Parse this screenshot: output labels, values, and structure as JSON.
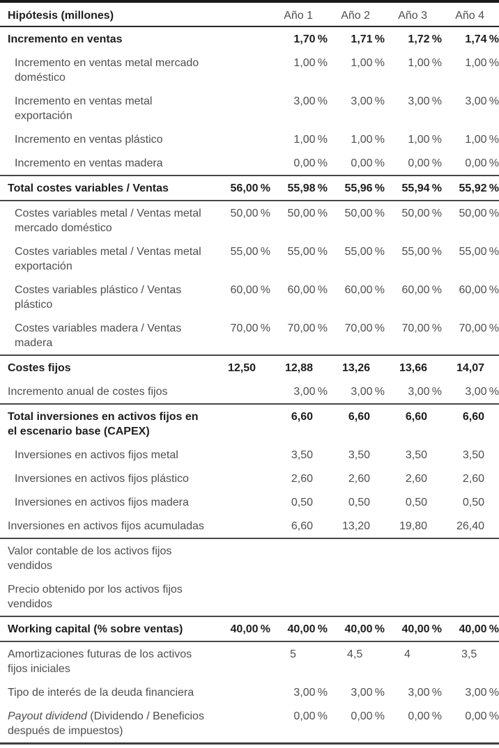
{
  "colors": {
    "text_regular": "#4e4e4e",
    "text_strong": "#1d1d1d",
    "rule": "#474747",
    "top_border": "#1a1a1a",
    "background": "#ffffff"
  },
  "table": {
    "title": "Hipótesis (millones)",
    "year_columns": [
      "Año 1",
      "Año 2",
      "Año 3",
      "Año 4"
    ],
    "rows": [
      {
        "label": "Incremento en ventas",
        "style": "bold",
        "values": [
          "",
          "1,70 %",
          "1,71 %",
          "1,72 %",
          "1,74 %"
        ]
      },
      {
        "label": "Incremento en ventas metal mercado\ndoméstico",
        "style": "sub",
        "values": [
          "",
          "1,00 %",
          "1,00 %",
          "1,00 %",
          "1,00 %"
        ]
      },
      {
        "label": "Incremento en ventas metal\nexportación",
        "style": "sub",
        "values": [
          "",
          "3,00 %",
          "3,00 %",
          "3,00 %",
          "3,00 %"
        ]
      },
      {
        "label": "Incremento en ventas plástico",
        "style": "sub",
        "values": [
          "",
          "1,00 %",
          "1,00 %",
          "1,00 %",
          "1,00 %"
        ]
      },
      {
        "label": "Incremento en ventas madera",
        "style": "sub",
        "values": [
          "",
          "0,00 %",
          "0,00 %",
          "0,00 %",
          "0,00 %"
        ]
      },
      {
        "label": "Total costes variables / Ventas",
        "style": "bold",
        "rule_above": true,
        "rule_below": true,
        "values": [
          "56,00 %",
          "55,98 %",
          "55,96 %",
          "55,94 %",
          "55,92 %"
        ]
      },
      {
        "label": "Costes variables metal / Ventas metal\nmercado doméstico",
        "style": "sub",
        "values": [
          "50,00 %",
          "50,00 %",
          "50,00 %",
          "50,00 %",
          "50,00 %"
        ]
      },
      {
        "label": "Costes variables metal / Ventas metal\nexportación",
        "style": "sub",
        "values": [
          "55,00 %",
          "55,00 %",
          "55,00 %",
          "55,00 %",
          "55,00 %"
        ]
      },
      {
        "label": "Costes variables plástico / Ventas\nplástico",
        "style": "sub",
        "values": [
          "60,00 %",
          "60,00 %",
          "60,00 %",
          "60,00 %",
          "60,00 %"
        ]
      },
      {
        "label": "Costes variables madera / Ventas\nmadera",
        "style": "sub",
        "values": [
          "70,00 %",
          "70,00 %",
          "70,00 %",
          "70,00 %",
          "70,00 %"
        ]
      },
      {
        "label": "Costes fijos",
        "style": "bold",
        "rule_above": true,
        "values": [
          "12,50",
          "12,88",
          "13,26",
          "13,66",
          "14,07"
        ]
      },
      {
        "label": "Incremento anual de costes fijos",
        "style": "plain",
        "values": [
          "",
          "3,00 %",
          "3,00 %",
          "3,00 %",
          "3,00 %"
        ]
      },
      {
        "label": "Total inversiones en activos fijos en\nel escenario base (CAPEX)",
        "style": "bold",
        "rule_above": true,
        "values": [
          "",
          "6,60",
          "6,60",
          "6,60",
          "6,60"
        ]
      },
      {
        "label": "Inversiones en activos fijos metal",
        "style": "sub",
        "values": [
          "",
          "3,50",
          "3,50",
          "3,50",
          "3,50"
        ]
      },
      {
        "label": "Inversiones en activos fijos plástico",
        "style": "sub",
        "values": [
          "",
          "2,60",
          "2,60",
          "2,60",
          "2,60"
        ]
      },
      {
        "label": "Inversiones en activos fijos madera",
        "style": "sub",
        "values": [
          "",
          "0,50",
          "0,50",
          "0,50",
          "0,50"
        ]
      },
      {
        "label": "Inversiones en activos fijos acumuladas",
        "style": "plain",
        "values": [
          "",
          "6,60",
          "13,20",
          "19,80",
          "26,40"
        ]
      },
      {
        "label": "Valor contable de los activos fijos\nvendidos",
        "style": "plain",
        "rule_above": true,
        "values": [
          "",
          "",
          "",
          "",
          ""
        ]
      },
      {
        "label": "Precio obtenido por los activos fijos\nvendidos",
        "style": "plain",
        "values": [
          "",
          "",
          "",
          "",
          ""
        ]
      },
      {
        "label": "Working capital (% sobre ventas)",
        "style": "bold",
        "rule_above": true,
        "rule_below": true,
        "values": [
          "40,00 %",
          "40,00 %",
          "40,00 %",
          "40,00 %",
          "40,00 %"
        ]
      },
      {
        "label": "Amortizaciones futuras de los activos\nfijos iniciales",
        "style": "plain",
        "num_align": "left",
        "values": [
          "",
          "5",
          "4,5",
          "4",
          "3,5"
        ]
      },
      {
        "label": "Tipo de interés de la deuda financiera",
        "style": "plain",
        "values": [
          "",
          "3,00 %",
          "3,00 %",
          "3,00 %",
          "3,00 %"
        ]
      },
      {
        "label": "Payout dividend (Dividendo / Beneficios\ndespués de impuestos)",
        "style": "plain",
        "italic_prefix": "Payout dividend",
        "values": [
          "",
          "0,00 %",
          "0,00 %",
          "0,00 %",
          "0,00 %"
        ]
      }
    ]
  }
}
